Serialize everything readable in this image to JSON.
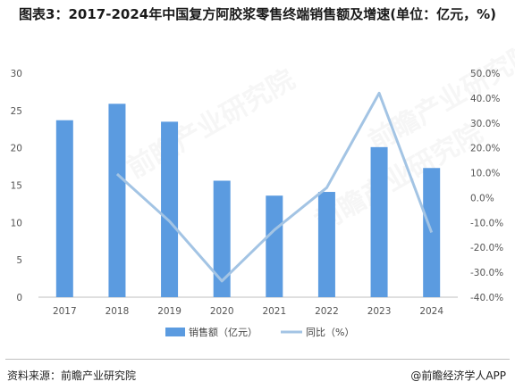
{
  "title": "图表3：2017-2024年中国复方阿胶浆零售终端销售额及增速(单位：亿元，%)",
  "watermark": "前瞻产业研究院",
  "footer": {
    "source": "资料来源：前瞻产业研究院",
    "credit": "@前瞻经济学人APP"
  },
  "colors": {
    "bar": "#5b9be0",
    "line": "#a3c4e4"
  },
  "chart_data": {
    "type": "bar",
    "categories": [
      "2017",
      "2018",
      "2019",
      "2020",
      "2021",
      "2022",
      "2023",
      "2024"
    ],
    "series": [
      {
        "name": "销售额（亿元）",
        "type": "bar",
        "axis": "left",
        "values": [
          23.7,
          25.9,
          23.5,
          15.6,
          13.6,
          14.1,
          20.1,
          17.3
        ]
      },
      {
        "name": "同比（%）",
        "type": "line",
        "axis": "right",
        "values": [
          null,
          9.5,
          -9.5,
          -33.5,
          -13.0,
          4.0,
          42.0,
          -14.0
        ]
      }
    ],
    "y_left": {
      "min": 0,
      "max": 30,
      "ticks": [
        0,
        5,
        10,
        15,
        20,
        25,
        30
      ],
      "tick_labels": [
        "0",
        "5",
        "10",
        "15",
        "20",
        "25",
        "30"
      ]
    },
    "y_right": {
      "min": -40,
      "max": 50,
      "ticks": [
        -40,
        -30,
        -20,
        -10,
        0,
        10,
        20,
        30,
        40,
        50
      ],
      "tick_labels": [
        "-40.0%",
        "-30.0%",
        "-20.0%",
        "-10.0%",
        "0.0%",
        "10.0%",
        "20.0%",
        "30.0%",
        "40.0%",
        "50.0%"
      ]
    },
    "grid": false,
    "legend_position": "bottom"
  }
}
